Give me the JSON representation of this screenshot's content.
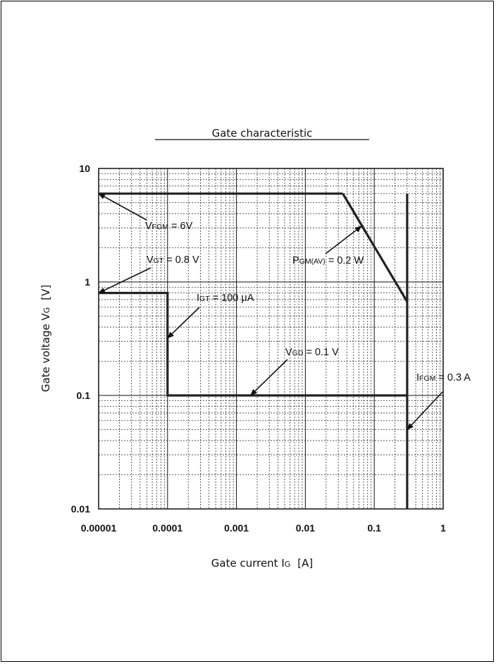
{
  "page": {
    "background": "#ffffff"
  },
  "chart_data": {
    "type": "line",
    "title": "Gate characteristic",
    "xlabel": {
      "prefix": "Gate current I",
      "sub": "G",
      "unit": "[A]"
    },
    "ylabel": {
      "prefix": "Gate voltage V",
      "sub": "G",
      "unit": "[V]"
    },
    "x_scale": "log",
    "y_scale": "log",
    "xlim": [
      1e-05,
      1
    ],
    "ylim": [
      0.01,
      10
    ],
    "grid": true,
    "legend": "none",
    "x_ticks": [
      {
        "value": 1e-05,
        "label": "0.00001"
      },
      {
        "value": 0.0001,
        "label": "0.0001"
      },
      {
        "value": 0.001,
        "label": "0.001"
      },
      {
        "value": 0.01,
        "label": "0.01"
      },
      {
        "value": 0.1,
        "label": "0.1"
      },
      {
        "value": 1,
        "label": "1"
      }
    ],
    "y_ticks": [
      {
        "value": 10,
        "label": "10"
      },
      {
        "value": 1,
        "label": "1"
      },
      {
        "value": 0.1,
        "label": "0.1"
      },
      {
        "value": 0.01,
        "label": "0.01"
      }
    ],
    "series": [
      {
        "points": [
          [
            1e-05,
            6
          ],
          [
            0.035,
            6
          ]
        ]
      },
      {
        "points": [
          [
            0.3,
            6
          ],
          [
            0.3,
            0.01
          ]
        ]
      },
      {
        "points": [
          [
            0.035,
            6
          ],
          [
            0.3,
            0.67
          ]
        ]
      },
      {
        "points": [
          [
            1e-05,
            0.8
          ],
          [
            0.0001,
            0.8
          ],
          [
            0.0001,
            0.1
          ],
          [
            0.3,
            0.1
          ]
        ]
      }
    ],
    "annotations": [
      {
        "id": "vfgm",
        "main": "V",
        "sub": "FGM",
        "rest": " = 6V",
        "arrow_to": [
          1e-05,
          6
        ]
      },
      {
        "id": "vgt",
        "main": "V",
        "sub": "GT",
        "rest": " = 0.8 V",
        "arrow_to": [
          1e-05,
          0.8
        ]
      },
      {
        "id": "igt",
        "main": "I",
        "sub": "GT",
        "rest": " = 100 μA",
        "arrow_to": [
          0.0001,
          0.32
        ]
      },
      {
        "id": "pgm",
        "main": "P",
        "sub": "GM(AV)",
        "rest": " = 0.2 W",
        "arrow_to": [
          0.065,
          3.1
        ]
      },
      {
        "id": "vgd",
        "main": "V",
        "sub": "GD",
        "rest": " = 0.1 V",
        "arrow_to": [
          0.0016,
          0.1
        ]
      },
      {
        "id": "ifgm",
        "main": "I",
        "sub": "FGM",
        "rest": " = 0.3 A",
        "arrow_to": [
          0.3,
          0.05
        ]
      }
    ]
  }
}
